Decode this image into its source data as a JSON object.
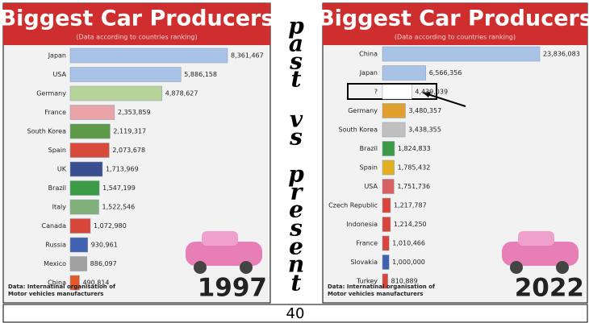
{
  "chart_data": [
    {
      "type": "bar",
      "orientation": "horizontal",
      "title": "Biggest Car Producers",
      "subtitle": "(Data according to countries ranking)",
      "categories": [
        "Japan",
        "USA",
        "Germany",
        "France",
        "South Korea",
        "Spain",
        "UK",
        "Brazil",
        "Italy",
        "Canada",
        "Russia",
        "Mexico",
        "China"
      ],
      "values": [
        8361467,
        5886158,
        4878627,
        2353859,
        2119317,
        2073678,
        1713969,
        1547199,
        1522546,
        1072980,
        930961,
        886097,
        490814
      ],
      "value_labels": [
        "8,361,467",
        "5,886,158",
        "4,878,627",
        "2,353,859",
        "2,119,317",
        "2,073,678",
        "1,713,969",
        "1,547,199",
        "1,522,546",
        "1,072,980",
        "930,961",
        "886,097",
        "490,814"
      ],
      "colors": [
        "#a8c3e6",
        "#a8c3e6",
        "#b6d49a",
        "#eaa3a6",
        "#5f9a4a",
        "#d84a3a",
        "#3a4f8f",
        "#3a9a45",
        "#7fb07a",
        "#d8453a",
        "#4060b0",
        "#a0a0a0",
        "#e35a2a"
      ],
      "source": [
        "Data: Internatinal organisation of",
        "Motor vehicles manufacturers"
      ],
      "year": "1997"
    },
    {
      "type": "bar",
      "orientation": "horizontal",
      "title": "Biggest Car Producers",
      "subtitle": "(Data according to countries ranking)",
      "categories": [
        "China",
        "Japan",
        "?",
        "Germany",
        "South Korea",
        "Brazil",
        "Spain",
        "USA",
        "Czech Republic",
        "Indonesia",
        "France",
        "Slovakia",
        "Turkey"
      ],
      "values": [
        23836083,
        6566356,
        4439039,
        3480357,
        3438355,
        1824833,
        1785432,
        1751736,
        1217787,
        1214250,
        1010466,
        1000000,
        810889
      ],
      "value_labels": [
        "23,836,083",
        "6,566,356",
        "4,439,039",
        "3,480,357",
        "3,438,355",
        "1,824,833",
        "1,785,432",
        "1,751,736",
        "1,217,787",
        "1,214,250",
        "1,010,466",
        "1,000,000",
        "810,889"
      ],
      "colors": [
        "#a8c3e6",
        "#a8c3e6",
        "#ffffff",
        "#e0a030",
        "#c0c0c0",
        "#3a9a45",
        "#e0b020",
        "#d86060",
        "#d8453a",
        "#d8453a",
        "#d8453a",
        "#4060b0",
        "#d8453a"
      ],
      "source": [
        "Data: Internatinal organisation of",
        "Motor vehicles manufacturers"
      ],
      "year": "2022"
    }
  ],
  "middle_letters": [
    "p",
    "a",
    "s",
    "t",
    "v",
    "s",
    "p",
    "r",
    "e",
    "s",
    "e",
    "n",
    "t"
  ],
  "page_number": "40"
}
